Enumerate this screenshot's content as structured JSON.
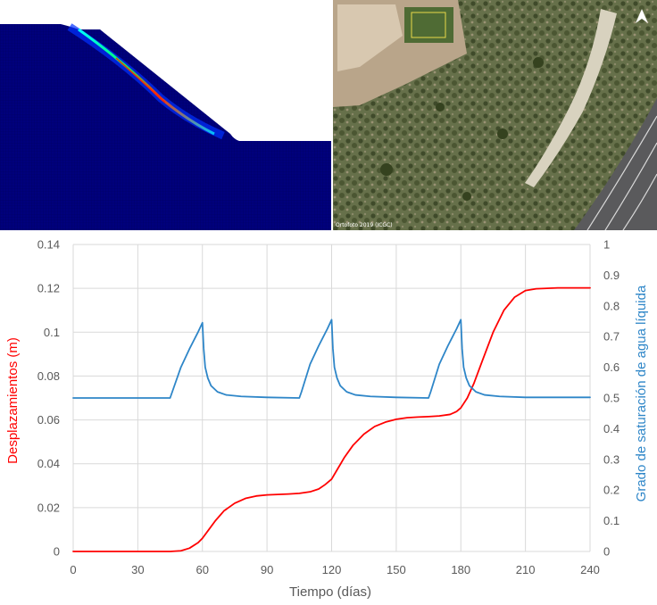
{
  "photo": {
    "credit": "Ortofoto 2019 (ICGC)",
    "north_icon": "north-arrow-icon"
  },
  "fem": {
    "colormap": [
      "#00007f",
      "#0000ff",
      "#00ffff",
      "#00ff00",
      "#ffff00",
      "#ff0000"
    ]
  },
  "chart_data": {
    "type": "line",
    "xlabel": "Tiempo (días)",
    "ylabel_left": "Desplazamientos (m)",
    "ylabel_right": "Grado de saturación de agua líquida",
    "xlim": [
      0,
      240
    ],
    "ylim_left": [
      0,
      0.14
    ],
    "ylim_right": [
      0,
      1
    ],
    "x_ticks": [
      "0",
      "30",
      "60",
      "90",
      "120",
      "150",
      "180",
      "210",
      "240"
    ],
    "y_ticks_left": [
      "0",
      "0.02",
      "0.04",
      "0.06",
      "0.08",
      "0.1",
      "0.12",
      "0.14"
    ],
    "y_ticks_right": [
      "0",
      "0.1",
      "0.2",
      "0.3",
      "0.4",
      "0.5",
      "0.6",
      "0.7",
      "0.8",
      "0.9",
      "1"
    ],
    "grid": true,
    "series": [
      {
        "axis": "left",
        "color": "#ff0000",
        "x": [
          0,
          45,
          50,
          54,
          58,
          60,
          63,
          66,
          70,
          75,
          80,
          85,
          90,
          95,
          100,
          105,
          110,
          114,
          117,
          120,
          123,
          126,
          130,
          135,
          140,
          145,
          150,
          155,
          160,
          165,
          170,
          175,
          178,
          180,
          183,
          186,
          190,
          195,
          200,
          205,
          210,
          215,
          225,
          240
        ],
        "y": [
          0,
          0,
          0.0003,
          0.0015,
          0.004,
          0.006,
          0.01,
          0.014,
          0.0185,
          0.022,
          0.0242,
          0.0253,
          0.0258,
          0.026,
          0.0262,
          0.0265,
          0.0272,
          0.0285,
          0.0305,
          0.033,
          0.038,
          0.043,
          0.0485,
          0.0535,
          0.057,
          0.059,
          0.0603,
          0.061,
          0.0613,
          0.0615,
          0.0618,
          0.0625,
          0.0638,
          0.0655,
          0.07,
          0.0765,
          0.087,
          0.1,
          0.11,
          0.116,
          0.119,
          0.1198,
          0.1202,
          0.1202
        ]
      },
      {
        "axis": "right",
        "color": "#2e86c8",
        "x": [
          0,
          45,
          46,
          50,
          54,
          58,
          60,
          60.6,
          61.3,
          62.5,
          64,
          67,
          71,
          78,
          90,
          105,
          106,
          110,
          114,
          118,
          120,
          120.6,
          121.3,
          122.5,
          124,
          127,
          131,
          138,
          150,
          165,
          166,
          170,
          174,
          178,
          180,
          180.6,
          181.3,
          182.5,
          184,
          187,
          191,
          198,
          210,
          240
        ],
        "y": [
          0.5,
          0.5,
          0.52,
          0.6,
          0.66,
          0.715,
          0.745,
          0.66,
          0.6,
          0.565,
          0.54,
          0.52,
          0.51,
          0.505,
          0.502,
          0.5,
          0.52,
          0.61,
          0.67,
          0.725,
          0.755,
          0.66,
          0.6,
          0.565,
          0.54,
          0.52,
          0.51,
          0.505,
          0.502,
          0.5,
          0.52,
          0.61,
          0.67,
          0.725,
          0.755,
          0.66,
          0.6,
          0.565,
          0.54,
          0.52,
          0.51,
          0.505,
          0.502,
          0.502
        ]
      }
    ]
  }
}
